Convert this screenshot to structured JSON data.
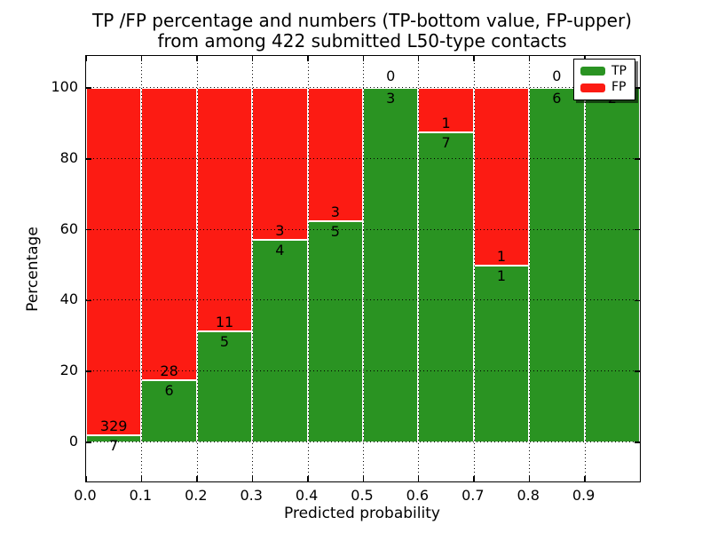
{
  "title": {
    "line1": "TP /FP percentage and numbers (TP-bottom value, FP-upper)",
    "line2": "from among 422 submitted L50-type contacts"
  },
  "chart_data": {
    "type": "bar",
    "stacked": true,
    "title": "TP /FP percentage and numbers (TP-bottom value, FP-upper)\nfrom among 422 submitted L50-type contacts",
    "xlabel": "Predicted probability",
    "ylabel": "Percentage",
    "categories": [
      "0.0",
      "0.1",
      "0.2",
      "0.3",
      "0.4",
      "0.5",
      "0.6",
      "0.7",
      "0.8",
      "0.9"
    ],
    "bin_width": 0.1,
    "series": [
      {
        "name": "TP",
        "color": "#2a9322",
        "values": [
          7,
          6,
          5,
          4,
          5,
          3,
          7,
          1,
          6,
          2
        ]
      },
      {
        "name": "FP",
        "color": "#fc1b13",
        "values": [
          329,
          28,
          11,
          3,
          3,
          0,
          1,
          1,
          0,
          0
        ]
      }
    ],
    "value_semantics": "bars show TP percentage of each bin (green bottom) and FP percentage (red top); printed numbers are raw counts, TP below boundary, FP above",
    "total_contacts": 422,
    "xticks": [
      "0.0",
      "0.1",
      "0.2",
      "0.3",
      "0.4",
      "0.5",
      "0.6",
      "0.7",
      "0.8",
      "0.9"
    ],
    "yticks": [
      "0",
      "20",
      "40",
      "60",
      "80",
      "100"
    ],
    "xlim": [
      0.0,
      1.0
    ],
    "ylim": [
      -11,
      109
    ],
    "grid": "dotted both axes",
    "legend": {
      "position": "upper right",
      "entries": [
        {
          "label": "TP",
          "color": "#2a9322"
        },
        {
          "label": "FP",
          "color": "#fc1b13"
        }
      ]
    }
  }
}
